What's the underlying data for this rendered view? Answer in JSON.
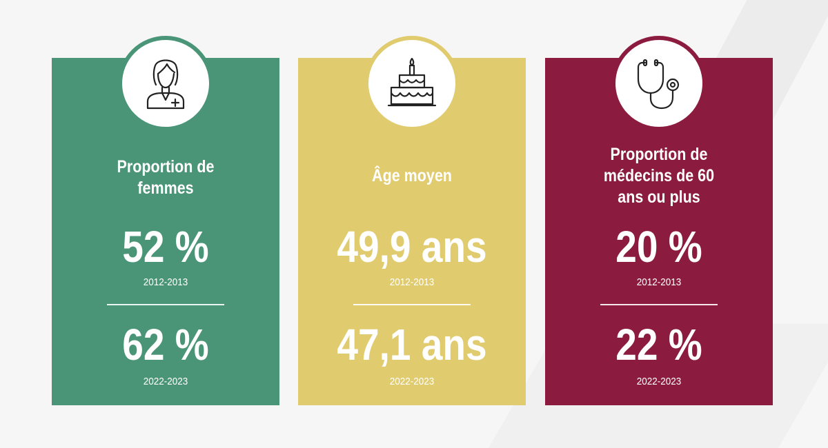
{
  "colors": {
    "green": "#4a9577",
    "yellow": "#e0cb6f",
    "maroon": "#8b1b3f",
    "icon_stroke": "#222222",
    "background": "#f6f6f6"
  },
  "cards": [
    {
      "icon": "female-nurse-icon",
      "title": "Proportion de femmes",
      "stat1": {
        "value": "52 %",
        "period": "2012-2013"
      },
      "stat2": {
        "value": "62 %",
        "period": "2022-2023"
      }
    },
    {
      "icon": "birthday-cake-icon",
      "title": "Âge moyen",
      "stat1": {
        "value": "49,9 ans",
        "period": "2012-2013"
      },
      "stat2": {
        "value": "47,1 ans",
        "period": "2022-2023"
      }
    },
    {
      "icon": "stethoscope-icon",
      "title": "Proportion de médecins de 60 ans ou plus",
      "stat1": {
        "value": "20 %",
        "period": "2012-2013"
      },
      "stat2": {
        "value": "22 %",
        "period": "2022-2023"
      }
    }
  ]
}
